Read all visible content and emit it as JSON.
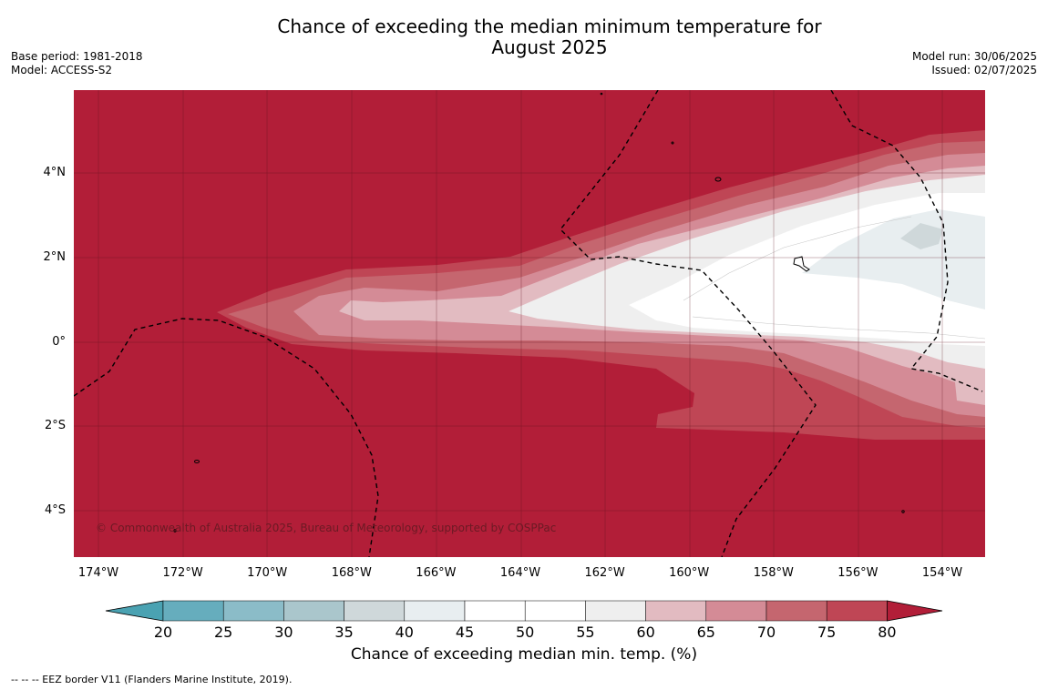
{
  "title_line1": "Chance of exceeding the median minimum temperature for",
  "title_line2": "August 2025",
  "meta_left": {
    "base_period": "Base period: 1981-2018",
    "model": "Model: ACCESS-S2"
  },
  "meta_right": {
    "model_run": "Model run: 30/06/2025",
    "issued": "Issued: 02/07/2025"
  },
  "map": {
    "lon_ticks": [
      "174°W",
      "172°W",
      "170°W",
      "168°W",
      "166°W",
      "164°W",
      "162°W",
      "160°W",
      "158°W",
      "156°W",
      "154°W"
    ],
    "lat_ticks": [
      "4°N",
      "2°N",
      "0°",
      "2°S",
      "4°S"
    ],
    "copyright": "© Commonwealth of Australia 2025, Bureau of Meteorology, supported by COSPPac",
    "background_color": "#b21e38"
  },
  "colorbar": {
    "label": "Chance of exceeding median min. temp. (%)",
    "ticks": [
      "20",
      "25",
      "30",
      "35",
      "40",
      "45",
      "50",
      "55",
      "60",
      "65",
      "70",
      "75",
      "80"
    ],
    "colors": [
      "#66adbd",
      "#8bbcc8",
      "#aac6cc",
      "#cfd8da",
      "#e8eef0",
      "#ffffff",
      "#ffffff",
      "#efefef",
      "#e2bbc1",
      "#d48b96",
      "#c5666f",
      "#bf4655"
    ],
    "low_extend_color": "#4aa2b2",
    "high_extend_color": "#b21e38"
  },
  "footnote": "--  --  -- EEZ border V11 (Flanders Marine Institute, 2019)."
}
